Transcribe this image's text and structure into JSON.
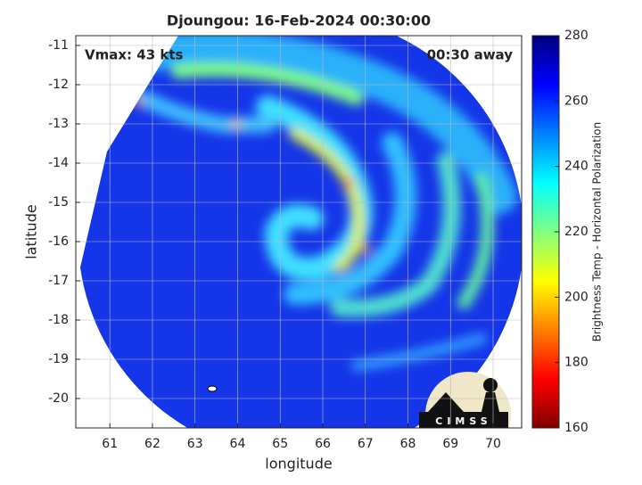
{
  "chart_data": {
    "type": "image",
    "title": "Djoungou: 16-Feb-2024 00:30:00",
    "xlabel": "longitude",
    "ylabel": "latitude",
    "xlim": [
      60.2,
      70.67
    ],
    "ylim": [
      -20.75,
      -10.75
    ],
    "xticks": [
      61,
      62,
      63,
      64,
      65,
      66,
      67,
      68,
      69,
      70
    ],
    "yticks": [
      -11,
      -12,
      -13,
      -14,
      -15,
      -16,
      -17,
      -18,
      -19,
      -20
    ],
    "grid": true,
    "annotations": [
      "Vmax: 43 kts",
      "00:30 away"
    ],
    "logo": "CIMSS",
    "colorbar": {
      "label": "Brightness Temp - Horizontal Polarization",
      "lim": [
        160,
        280
      ],
      "ticks": [
        160,
        180,
        200,
        220,
        240,
        260,
        280
      ],
      "colors": [
        "#800000",
        "#ff0000",
        "#ff8000",
        "#ffff00",
        "#80ff80",
        "#00ffff",
        "#0080ff",
        "#0000ff",
        "#000080"
      ]
    }
  }
}
